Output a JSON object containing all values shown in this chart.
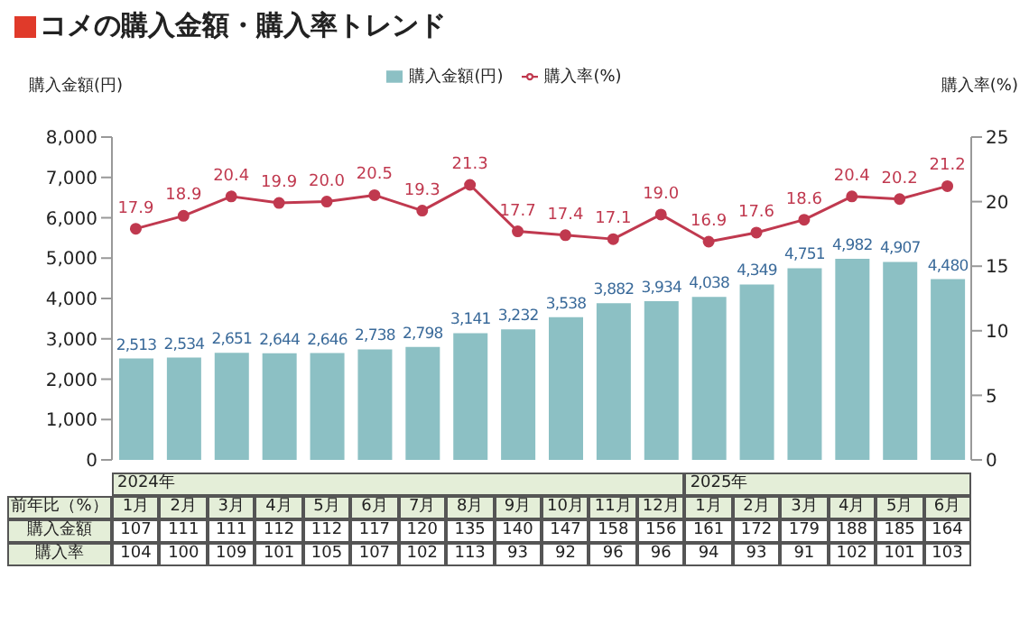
{
  "chart_data": {
    "type": "bar",
    "title": "コメの購入金額・購入率トレンド",
    "ylabel": "購入金額(円)",
    "y2label": "購入率(%)",
    "categories": [
      "1月",
      "2月",
      "3月",
      "4月",
      "5月",
      "6月",
      "7月",
      "8月",
      "9月",
      "10月",
      "11月",
      "12月",
      "1月",
      "2月",
      "3月",
      "4月",
      "5月",
      "6月"
    ],
    "series": [
      {
        "name": "購入金額(円)",
        "color": "#8cc0c4",
        "values": [
          2513,
          2534,
          2651,
          2644,
          2646,
          2738,
          2798,
          3141,
          3232,
          3538,
          3882,
          3934,
          4038,
          4349,
          4751,
          4982,
          4907,
          4480
        ],
        "value_labels": [
          "2,513",
          "2,534",
          "2,651",
          "2,644",
          "2,646",
          "2,738",
          "2,798",
          "3,141",
          "3,232",
          "3,538",
          "3,882",
          "3,934",
          "4,038",
          "4,349",
          "4,751",
          "4,982",
          "4,907",
          "4,480"
        ]
      },
      {
        "name": "購入率(%)",
        "type": "line",
        "axis": "y2",
        "color": "#c0394f",
        "values": [
          17.9,
          18.9,
          20.4,
          19.9,
          20.0,
          20.5,
          19.3,
          21.3,
          17.7,
          17.4,
          17.1,
          19.0,
          16.9,
          17.6,
          18.6,
          20.4,
          20.2,
          21.2
        ],
        "value_labels": [
          "17.9",
          "18.9",
          "20.4",
          "19.9",
          "20.0",
          "20.5",
          "19.3",
          "21.3",
          "17.7",
          "17.4",
          "17.1",
          "19.0",
          "16.9",
          "17.6",
          "18.6",
          "20.4",
          "20.2",
          "21.2"
        ]
      }
    ],
    "ylim": [
      0,
      8000
    ],
    "yticks": [
      0,
      {
        "value": 1000,
        "label": "1,000"
      },
      {
        "value": 2000,
        "label": "2,000"
      },
      {
        "value": 3000,
        "label": "3,000"
      },
      {
        "value": 4000,
        "label": "4,000"
      },
      {
        "value": 5000,
        "label": "5,000"
      },
      {
        "value": 6000,
        "label": "6,000"
      },
      {
        "value": 7000,
        "label": "7,000"
      },
      {
        "value": 8000,
        "label": "8,000"
      }
    ],
    "y2lim": [
      0,
      25
    ],
    "y2ticks": [
      0,
      5,
      10,
      15,
      20,
      25
    ],
    "marker": "circle",
    "legend": "top",
    "grid": false,
    "annotations": [
      "2024年",
      "2025年",
      "前年比（%）",
      "購入金額",
      "107",
      "111",
      "111",
      "112",
      "112",
      "117",
      "120",
      "135",
      "140",
      "147",
      "158",
      "156",
      "161",
      "172",
      "179",
      "188",
      "185",
      "164",
      "購入率",
      "104",
      "100",
      "109",
      "101",
      "105",
      "107",
      "102",
      "113",
      "93",
      "92",
      "96",
      "96",
      "94",
      "93",
      "91",
      "102",
      "101",
      "103"
    ]
  }
}
